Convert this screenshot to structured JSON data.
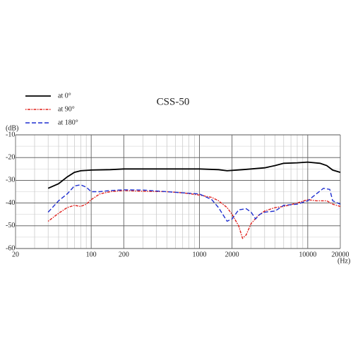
{
  "chart_data": {
    "type": "line",
    "title": "CSS-50",
    "y_label": "(dB)",
    "x_label": "(Hz)",
    "log_x": true,
    "grid": true,
    "legend": "top-left",
    "xlim": [
      20,
      20000
    ],
    "ylim": [
      -60,
      -10
    ],
    "xticks": [
      20,
      100,
      200,
      1000,
      2000,
      10000,
      20000
    ],
    "yticks": [
      -10,
      -20,
      -30,
      -40,
      -50,
      -60
    ],
    "series": [
      {
        "name": "at 0°",
        "color": "#000000",
        "dash": "solid",
        "x": [
          40,
          50,
          60,
          70,
          80,
          100,
          150,
          200,
          300,
          500,
          1000,
          1500,
          1800,
          2500,
          3000,
          4000,
          5000,
          6000,
          8000,
          10000,
          13000,
          15000,
          17000,
          20000
        ],
        "values": [
          -33.5,
          -31.5,
          -28.5,
          -26.5,
          -25.8,
          -25.5,
          -25.3,
          -25,
          -25,
          -25,
          -25,
          -25.3,
          -25.8,
          -25.3,
          -25,
          -24.5,
          -23.5,
          -22.5,
          -22.3,
          -22,
          -22.5,
          -23.5,
          -25.5,
          -26.5
        ]
      },
      {
        "name": "at 90°",
        "color": "#e0201c",
        "dash": "dotdash",
        "x": [
          40,
          50,
          60,
          70,
          80,
          90,
          100,
          120,
          150,
          200,
          300,
          500,
          700,
          1000,
          1300,
          1500,
          1800,
          2000,
          2300,
          2500,
          2700,
          3000,
          3500,
          4000,
          5000,
          6000,
          8000,
          10000,
          12000,
          15000,
          17000,
          20000
        ],
        "values": [
          -48,
          -44.5,
          -42,
          -41,
          -41.5,
          -40.5,
          -38.5,
          -36,
          -35,
          -34.5,
          -34.8,
          -35,
          -35.5,
          -36.5,
          -37.5,
          -39,
          -42,
          -45,
          -50,
          -55.5,
          -54,
          -49,
          -45.5,
          -43.5,
          -42,
          -41.5,
          -40,
          -38.5,
          -39,
          -39,
          -40.5,
          -41.5
        ]
      },
      {
        "name": "at 180°",
        "color": "#1f2fd0",
        "dash": "dashed",
        "x": [
          40,
          50,
          60,
          70,
          80,
          90,
          100,
          120,
          150,
          200,
          300,
          500,
          700,
          1000,
          1300,
          1500,
          1800,
          2000,
          2300,
          2700,
          3000,
          3300,
          3600,
          4000,
          5000,
          6000,
          8000,
          10000,
          12000,
          14000,
          16000,
          17000,
          20000
        ],
        "values": [
          -44,
          -39,
          -36,
          -32.5,
          -32,
          -33,
          -35,
          -35,
          -34.5,
          -34.2,
          -34.3,
          -35,
          -35.5,
          -36,
          -38.5,
          -42,
          -48,
          -47,
          -43,
          -42.5,
          -44,
          -47,
          -45,
          -44,
          -43.5,
          -41,
          -40.5,
          -39,
          -36,
          -33.5,
          -34,
          -39,
          -40.5
        ]
      }
    ]
  }
}
